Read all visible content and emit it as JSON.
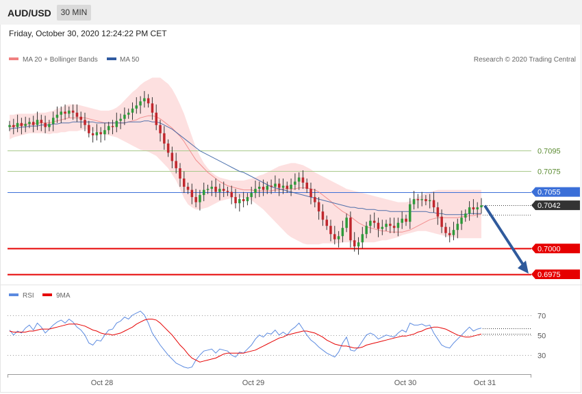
{
  "header": {
    "symbol": "AUD/USD",
    "timeframe": "30 MIN",
    "timestamp": "Friday, October 30, 2020 12:24:22 PM CET"
  },
  "price_panel": {
    "legend": [
      {
        "label": "MA 20 + Bollinger Bands",
        "color": "#f08080"
      },
      {
        "label": "MA 50",
        "color": "#2f5aa0"
      }
    ],
    "credit": "Research © 2020 Trading Central",
    "levels": [
      {
        "value": "0.7095",
        "kind": "resistance-2",
        "color": "#a8c98a"
      },
      {
        "value": "0.7075",
        "kind": "resistance-1",
        "color": "#a8c98a"
      },
      {
        "value": "0.7055",
        "kind": "pivot",
        "color": "#3b6fd8"
      },
      {
        "value": "0.7042",
        "kind": "last-price",
        "color": "#333333"
      },
      {
        "value": "0.7000",
        "kind": "support-1",
        "color": "#e60000"
      },
      {
        "value": "0.6975",
        "kind": "support-2",
        "color": "#e60000"
      }
    ],
    "arrow": {
      "from": 0.7055,
      "to": 0.6975,
      "color": "#2f5a9c"
    }
  },
  "rsi_panel": {
    "legend": [
      {
        "label": "RSI",
        "color": "#5b8ae0"
      },
      {
        "label": "9MA",
        "color": "#e60000"
      }
    ],
    "ticks": [
      "70",
      "50",
      "30"
    ]
  },
  "x_axis": {
    "labels": [
      "Oct 28",
      "Oct 29",
      "Oct 30",
      "Oct 31"
    ]
  },
  "chart_data": {
    "type": "candlestick",
    "close": [
      0.712,
      0.7118,
      0.7122,
      0.7119,
      0.7121,
      0.7123,
      0.712,
      0.7125,
      0.7122,
      0.7118,
      0.7121,
      0.7127,
      0.713,
      0.7133,
      0.7131,
      0.7134,
      0.7132,
      0.7128,
      0.7125,
      0.712,
      0.7112,
      0.711,
      0.7113,
      0.7111,
      0.7115,
      0.7119,
      0.7118,
      0.7124,
      0.7126,
      0.713,
      0.7132,
      0.7136,
      0.7139,
      0.7143,
      0.7146,
      0.7141,
      0.7132,
      0.712,
      0.7112,
      0.7102,
      0.7093,
      0.7085,
      0.7078,
      0.7068,
      0.706,
      0.7057,
      0.705,
      0.7045,
      0.7052,
      0.7057,
      0.7058,
      0.706,
      0.7055,
      0.7058,
      0.7056,
      0.7055,
      0.705,
      0.7044,
      0.7048,
      0.7046,
      0.705,
      0.7054,
      0.7058,
      0.706,
      0.7057,
      0.7061,
      0.706,
      0.7063,
      0.7059,
      0.7061,
      0.7058,
      0.7062,
      0.7065,
      0.7069,
      0.7064,
      0.7058,
      0.705,
      0.7045,
      0.7036,
      0.7028,
      0.7022,
      0.7014,
      0.7009,
      0.7012,
      0.702,
      0.703,
      0.7008,
      0.7002,
      0.7006,
      0.7014,
      0.7022,
      0.7027,
      0.7025,
      0.7019,
      0.7021,
      0.7024,
      0.7022,
      0.702,
      0.7025,
      0.7029,
      0.7026,
      0.7043,
      0.7048,
      0.7047,
      0.7048,
      0.7046,
      0.7047,
      0.704,
      0.7031,
      0.7021,
      0.7015,
      0.7013,
      0.7018,
      0.7024,
      0.703,
      0.7034,
      0.704,
      0.7038,
      0.704,
      0.7042
    ],
    "ma20": [
      0.7118,
      0.7119,
      0.712,
      0.712,
      0.7121,
      0.7121,
      0.7121,
      0.7122,
      0.7122,
      0.7122,
      0.7122,
      0.7123,
      0.7124,
      0.7125,
      0.7126,
      0.7127,
      0.7127,
      0.7127,
      0.7127,
      0.7127,
      0.7126,
      0.7125,
      0.7124,
      0.7123,
      0.7122,
      0.7122,
      0.7122,
      0.7122,
      0.7122,
      0.7122,
      0.7123,
      0.7124,
      0.7125,
      0.7127,
      0.7128,
      0.7129,
      0.7129,
      0.7128,
      0.7126,
      0.7123,
      0.712,
      0.7117,
      0.7113,
      0.7109,
      0.7104,
      0.7098,
      0.7092,
      0.7086,
      0.7082,
      0.7078,
      0.7074,
      0.7071,
      0.7068,
      0.7065,
      0.7063,
      0.7061,
      0.706,
      0.7059,
      0.7058,
      0.7057,
      0.7057,
      0.7057,
      0.7056,
      0.7056,
      0.7056,
      0.7056,
      0.7056,
      0.7057,
      0.7057,
      0.7058,
      0.7058,
      0.7058,
      0.7058,
      0.7059,
      0.7059,
      0.7059,
      0.7058,
      0.7057,
      0.7055,
      0.7052,
      0.7049,
      0.7046,
      0.7042,
      0.7039,
      0.7036,
      0.7034,
      0.7031,
      0.7028,
      0.7025,
      0.7023,
      0.7021,
      0.702,
      0.7019,
      0.7018,
      0.7017,
      0.7017,
      0.7016,
      0.7016,
      0.7016,
      0.7016,
      0.7017,
      0.7018,
      0.702,
      0.7022,
      0.7024,
      0.7026,
      0.7028,
      0.7029,
      0.703,
      0.703,
      0.703,
      0.703,
      0.703,
      0.703,
      0.7031,
      0.7031,
      0.7032,
      0.7032,
      0.7033,
      0.7033
    ],
    "ma50": [
      0.7116,
      0.7117,
      0.7117,
      0.7118,
      0.7118,
      0.7119,
      0.7119,
      0.7119,
      0.712,
      0.712,
      0.712,
      0.7121,
      0.7121,
      0.7122,
      0.7122,
      0.7122,
      0.7123,
      0.7123,
      0.7123,
      0.7123,
      0.7123,
      0.7123,
      0.7122,
      0.7122,
      0.7122,
      0.7122,
      0.7122,
      0.7122,
      0.7122,
      0.7122,
      0.7123,
      0.7123,
      0.7123,
      0.7123,
      0.7124,
      0.7124,
      0.7123,
      0.7123,
      0.7122,
      0.712,
      0.7118,
      0.7116,
      0.7113,
      0.711,
      0.7107,
      0.7104,
      0.7101,
      0.7098,
      0.7095,
      0.7093,
      0.7091,
      0.7089,
      0.7087,
      0.7085,
      0.7083,
      0.7081,
      0.7079,
      0.7077,
      0.7075,
      0.7074,
      0.7072,
      0.707,
      0.7068,
      0.7066,
      0.7064,
      0.7062,
      0.706,
      0.7059,
      0.7058,
      0.7057,
      0.7056,
      0.7055,
      0.7054,
      0.7053,
      0.7052,
      0.7051,
      0.705,
      0.7049,
      0.7048,
      0.7047,
      0.7046,
      0.7045,
      0.7044,
      0.7043,
      0.7042,
      0.7041,
      0.704,
      0.704,
      0.7039,
      0.7039,
      0.7038,
      0.7038,
      0.7038,
      0.7037,
      0.7037,
      0.7037,
      0.7036,
      0.7036,
      0.7036,
      0.7036,
      0.7036,
      0.7036,
      0.7036,
      0.7036,
      0.7036,
      0.7036,
      0.7035,
      0.7035,
      0.7034,
      0.7034,
      0.7033,
      0.7033,
      0.7033,
      0.7033,
      0.7033,
      0.7033,
      0.7034,
      0.7034,
      0.7034,
      0.7034
    ],
    "bb_upper": [
      0.713,
      0.713,
      0.7131,
      0.7131,
      0.7131,
      0.7131,
      0.7131,
      0.7132,
      0.7132,
      0.7132,
      0.7133,
      0.7134,
      0.7136,
      0.7137,
      0.7139,
      0.714,
      0.714,
      0.714,
      0.7139,
      0.7138,
      0.7137,
      0.7136,
      0.7135,
      0.7134,
      0.7134,
      0.7134,
      0.7135,
      0.7137,
      0.714,
      0.7144,
      0.7148,
      0.7152,
      0.7155,
      0.7159,
      0.7162,
      0.7164,
      0.7166,
      0.7166,
      0.7166,
      0.7163,
      0.716,
      0.7155,
      0.7148,
      0.714,
      0.7131,
      0.712,
      0.7109,
      0.7098,
      0.709,
      0.7083,
      0.7078,
      0.7074,
      0.7071,
      0.7069,
      0.7068,
      0.7067,
      0.7066,
      0.7066,
      0.7066,
      0.7066,
      0.7067,
      0.7068,
      0.7069,
      0.7071,
      0.7072,
      0.7074,
      0.7076,
      0.7078,
      0.708,
      0.7081,
      0.7082,
      0.7083,
      0.7083,
      0.7082,
      0.7081,
      0.7079,
      0.7077,
      0.7074,
      0.7072,
      0.707,
      0.7068,
      0.7066,
      0.7064,
      0.7062,
      0.706,
      0.7058,
      0.7057,
      0.7056,
      0.7055,
      0.7054,
      0.7053,
      0.7052,
      0.7051,
      0.705,
      0.7049,
      0.7048,
      0.7047,
      0.7046,
      0.7045,
      0.7045,
      0.7045,
      0.7046,
      0.7048,
      0.705,
      0.7052,
      0.7054,
      0.7055,
      0.7056,
      0.7057,
      0.7057,
      0.7057,
      0.7057,
      0.7057,
      0.7057,
      0.7057,
      0.7057,
      0.7057,
      0.7057,
      0.7057,
      0.7057
    ],
    "bb_lower": [
      0.7106,
      0.7108,
      0.7109,
      0.711,
      0.7111,
      0.7112,
      0.7112,
      0.7112,
      0.7112,
      0.7112,
      0.7111,
      0.7112,
      0.7112,
      0.7113,
      0.7113,
      0.7114,
      0.7114,
      0.7114,
      0.7115,
      0.7116,
      0.7115,
      0.7114,
      0.7113,
      0.7112,
      0.7111,
      0.711,
      0.7109,
      0.7108,
      0.7106,
      0.7104,
      0.7102,
      0.71,
      0.7098,
      0.7096,
      0.7095,
      0.7094,
      0.7092,
      0.709,
      0.7086,
      0.7082,
      0.7078,
      0.7072,
      0.7066,
      0.7058,
      0.7049,
      0.7043,
      0.704,
      0.7038,
      0.7038,
      0.7039,
      0.704,
      0.7042,
      0.7044,
      0.7046,
      0.7047,
      0.7048,
      0.7049,
      0.7049,
      0.705,
      0.7049,
      0.7048,
      0.7047,
      0.7044,
      0.7041,
      0.7038,
      0.7034,
      0.703,
      0.7026,
      0.7022,
      0.7018,
      0.7014,
      0.7011,
      0.7009,
      0.7007,
      0.7005,
      0.7004,
      0.7004,
      0.7004,
      0.7004,
      0.7005,
      0.7005,
      0.7005,
      0.7005,
      0.7005,
      0.7006,
      0.7006,
      0.7006,
      0.7006,
      0.7006,
      0.7006,
      0.7006,
      0.7006,
      0.7006,
      0.7007,
      0.7008,
      0.7008,
      0.7009,
      0.701,
      0.7011,
      0.7013,
      0.7014,
      0.7015,
      0.7016,
      0.7017,
      0.7017,
      0.7017,
      0.7016,
      0.7015,
      0.7014,
      0.7013,
      0.7012,
      0.7011,
      0.7011,
      0.701,
      0.701,
      0.701,
      0.701,
      0.701,
      0.701,
      0.701
    ],
    "rsi": [
      55,
      50,
      54,
      52,
      57,
      60,
      55,
      62,
      58,
      52,
      56,
      60,
      63,
      65,
      62,
      66,
      63,
      58,
      55,
      50,
      42,
      40,
      45,
      44,
      50,
      55,
      56,
      62,
      64,
      68,
      66,
      70,
      72,
      74,
      70,
      62,
      52,
      46,
      40,
      35,
      30,
      26,
      22,
      20,
      18,
      17,
      18,
      25,
      30,
      34,
      35,
      36,
      32,
      36,
      35,
      34,
      30,
      28,
      33,
      32,
      36,
      40,
      46,
      50,
      48,
      52,
      51,
      55,
      50,
      53,
      50,
      55,
      58,
      62,
      56,
      50,
      45,
      42,
      38,
      35,
      32,
      30,
      28,
      33,
      42,
      48,
      35,
      34,
      38,
      44,
      50,
      52,
      50,
      46,
      48,
      50,
      49,
      48,
      52,
      55,
      53,
      62,
      60,
      60,
      61,
      59,
      60,
      52,
      46,
      40,
      38,
      37,
      42,
      46,
      50,
      54,
      58,
      54,
      56,
      57
    ],
    "rsi_ma": [
      54,
      53,
      53,
      53,
      53,
      54,
      54,
      55,
      56,
      56,
      56,
      57,
      58,
      59,
      60,
      61,
      61,
      61,
      60,
      59,
      57,
      55,
      54,
      52,
      51,
      51,
      50,
      51,
      52,
      54,
      56,
      58,
      61,
      63,
      65,
      66,
      66,
      65,
      62,
      58,
      54,
      50,
      45,
      40,
      36,
      31,
      27,
      25,
      23,
      24,
      25,
      26,
      27,
      29,
      31,
      32,
      32,
      32,
      32,
      32,
      33,
      34,
      35,
      37,
      39,
      41,
      43,
      45,
      47,
      48,
      50,
      51,
      52,
      53,
      54,
      54,
      53,
      52,
      50,
      48,
      45,
      43,
      41,
      40,
      39,
      39,
      38,
      37,
      37,
      38,
      40,
      41,
      42,
      43,
      44,
      45,
      46,
      47,
      48,
      49,
      49,
      50,
      51,
      53,
      54,
      56,
      57,
      58,
      58,
      57,
      56,
      54,
      52,
      50,
      49,
      48,
      48,
      49,
      50,
      51
    ],
    "y_range": [
      0.6965,
      0.7175
    ],
    "rsi_range": [
      15,
      80
    ]
  }
}
